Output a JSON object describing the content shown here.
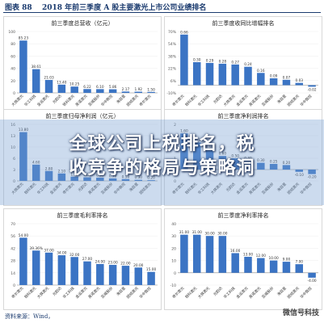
{
  "header": {
    "figure_label": "图表 88",
    "figure_title": "2018 年前三季度 A 股主要激光上市公司业绩排名"
  },
  "overlay": {
    "line1": "全球公司上税排名，税",
    "line2": "收竞争的格局与策略洞"
  },
  "footer": {
    "source": "资料来源：Wind，",
    "watermark": "微信号科技"
  },
  "colors": {
    "bar": "#3b74c4",
    "label": "#333333",
    "axis": "#888888"
  },
  "chart_data": [
    {
      "type": "bar",
      "title": "前三季度总营收（亿元）",
      "categories": [
        "大族激光",
        "华工科技",
        "金运激光",
        "光韵达",
        "锐科激光",
        "英诺激光",
        "亚威股份",
        "华中数控",
        "海目星",
        "团结激光",
        "帝尔激光"
      ],
      "values": [
        85.23,
        38.61,
        21.03,
        13.4,
        10.25,
        6.22,
        6.1,
        5.86,
        2.17,
        1.92,
        1.5
      ],
      "ylim": [
        0,
        100
      ]
    },
    {
      "type": "bar",
      "title": "前三季度收同比增幅排名",
      "categories": [
        "帝尔激光",
        "锐科激光",
        "华工科技",
        "光韵达",
        "大族激光",
        "金运激光",
        "英诺激光",
        "亚威股份",
        "海目星",
        "团结激光",
        "华中数控"
      ],
      "values": [
        0.66,
        0.3,
        0.29,
        0.28,
        0.27,
        0.24,
        0.16,
        0.09,
        0.07,
        0.03,
        -0.02
      ],
      "ylim": [
        -0.1,
        0.7
      ]
    },
    {
      "type": "bar",
      "title": "前三季度归母净利润（亿元）",
      "categories": [
        "大族激光",
        "锐科激光",
        "华工科技",
        "金运激光",
        "帝尔激光",
        "光韵达",
        "英诺激光",
        "亚威股份",
        "华中数控",
        "海目星",
        "团结激光"
      ],
      "values": [
        13.8,
        4.6,
        2.8,
        2.1,
        1.2,
        1.0,
        0.9,
        0.7,
        0.5,
        0.3,
        0.2
      ],
      "ylim": [
        0,
        16
      ]
    },
    {
      "type": "bar",
      "title": "前三季度净利润排名",
      "categories": [
        "帝尔激光",
        "锐科激光",
        "华工科技",
        "大族激光",
        "光韵达",
        "金运激光",
        "英诺激光",
        "亚威股份",
        "海目星",
        "团结激光",
        "华中数控"
      ],
      "values": [
        1.6,
        1.2,
        0.9,
        0.6,
        0.5,
        0.4,
        0.3,
        0.25,
        0.2,
        -0.1,
        -0.2
      ],
      "ylim": [
        -0.5,
        2
      ]
    },
    {
      "type": "bar",
      "title": "前三季度毛利率排名",
      "categories": [
        "帝尔激光",
        "锐科激光",
        "大族激光",
        "光韵达",
        "华工科技",
        "金运激光",
        "英诺激光",
        "亚威股份",
        "海目星",
        "团结激光",
        "华中数控"
      ],
      "values": [
        54.0,
        39.36,
        37.0,
        34.0,
        32.0,
        27.0,
        24.0,
        23.0,
        22.0,
        20.0,
        15.0
      ],
      "data_labels": [
        "",
        "39.36%",
        "",
        "",
        "",
        "",
        "",
        "",
        "",
        "",
        ""
      ],
      "ylim": [
        0,
        70
      ]
    },
    {
      "type": "bar",
      "title": "前三季度净利率排名",
      "categories": [
        "帝尔激光",
        "锐科激光",
        "大族激光",
        "光韵达",
        "华工科技",
        "金运激光",
        "英诺激光",
        "亚威股份",
        "海目星",
        "团结激光",
        "华中数控"
      ],
      "values": [
        31.0,
        31.0,
        30.0,
        30.0,
        16.0,
        13.0,
        12.0,
        10.0,
        9.0,
        7.0,
        -4.0
      ],
      "ylim": [
        -10,
        40
      ]
    }
  ]
}
